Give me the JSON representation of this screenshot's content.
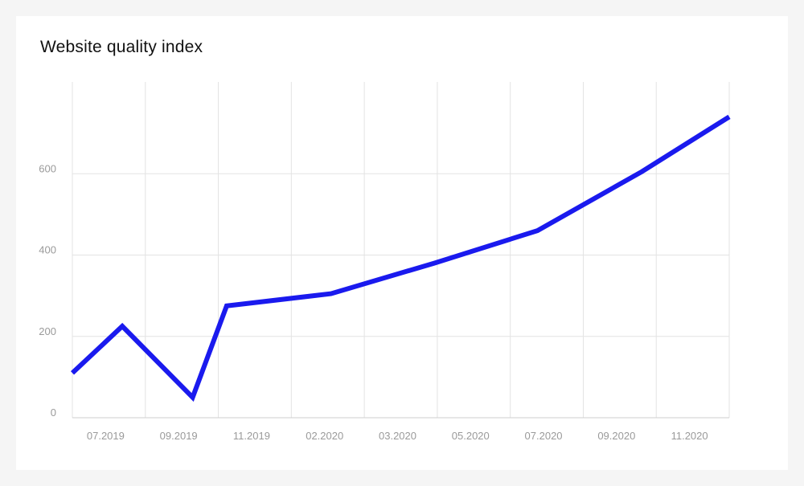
{
  "chart_data": {
    "type": "line",
    "title": "Website quality index",
    "x": [
      "2019-06-01",
      "2019-07-15",
      "2019-09-15",
      "2019-10-15",
      "2020-01-15",
      "2020-04-15",
      "2020-07-15",
      "2020-10-15",
      "2020-12-31"
    ],
    "x_tick_labels": [
      "07.2019",
      "09.2019",
      "11.2019",
      "02.2020",
      "03.2020",
      "05.2020",
      "07.2020",
      "09.2020",
      "11.2020"
    ],
    "series": [
      {
        "values": [
          110,
          225,
          50,
          275,
          305,
          380,
          460,
          605,
          740
        ],
        "color": "#1a1aee"
      }
    ],
    "y_ticks": [
      0,
      200,
      400,
      600
    ],
    "ylim": [
      0,
      800
    ],
    "grid": true,
    "legend": "none"
  }
}
